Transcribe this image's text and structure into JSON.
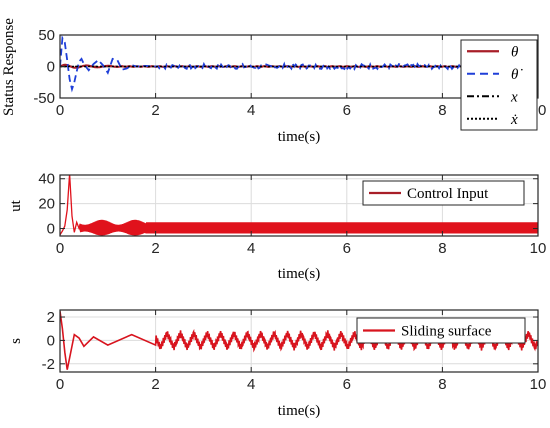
{
  "chart_data": [
    {
      "type": "line",
      "ylabel": "Status Response",
      "xlabel": "time(s)",
      "xlim": [
        0,
        10
      ],
      "ylim": [
        -50,
        50
      ],
      "xticks": [
        "0",
        "2",
        "4",
        "6",
        "8",
        "10"
      ],
      "yticks": [
        "50",
        "0",
        "-50"
      ],
      "grid": true,
      "legend_position": "top-right",
      "series": [
        {
          "name": "θ",
          "color": "#a81e28",
          "style": "solid"
        },
        {
          "name": "θ̇",
          "color": "#1f3fd8",
          "style": "dashed"
        },
        {
          "name": "x",
          "color": "#000000",
          "style": "dashdot"
        },
        {
          "name": "ẋ",
          "color": "#000000",
          "style": "dotted"
        }
      ],
      "theta_dot_samples": {
        "x": [
          0,
          0.05,
          0.1,
          0.15,
          0.2,
          0.25,
          0.3,
          0.35,
          0.4,
          0.45,
          0.5,
          0.6,
          0.7,
          0.8,
          0.9,
          1.0,
          1.1,
          1.2,
          1.3,
          1.4,
          1.5,
          1.6,
          1.8,
          2.0
        ],
        "y": [
          0,
          45,
          38,
          10,
          -20,
          -36,
          -25,
          -8,
          8,
          12,
          4,
          -6,
          4,
          10,
          2,
          -10,
          12,
          10,
          -5,
          -3,
          2,
          0,
          1,
          0
        ],
        "noise_amplitude_after_2s": 4
      }
    },
    {
      "type": "line",
      "ylabel": "ut",
      "xlabel": "time(s)",
      "xlim": [
        0,
        10
      ],
      "ylim": [
        -6,
        43
      ],
      "xticks": [
        "0",
        "2",
        "4",
        "6",
        "8",
        "10"
      ],
      "yticks": [
        "40",
        "20",
        "0"
      ],
      "grid": true,
      "legend_position": "top-right",
      "series": [
        {
          "name": "Control Input",
          "color": "#a81e28",
          "style": "solid"
        }
      ],
      "samples": {
        "x": [
          0,
          0.05,
          0.1,
          0.15,
          0.2,
          0.25,
          0.3,
          0.35,
          0.4
        ],
        "y": [
          -5,
          -2,
          2,
          15,
          44,
          10,
          -3,
          5,
          0
        ],
        "band_after_0_5s": [
          -4,
          5
        ]
      }
    },
    {
      "type": "line",
      "ylabel": "s",
      "xlabel": "time(s)",
      "xlim": [
        0,
        10
      ],
      "ylim": [
        -2.7,
        2.6
      ],
      "xticks": [
        "0",
        "2",
        "4",
        "6",
        "8",
        "10"
      ],
      "yticks": [
        "2",
        "0",
        "-2"
      ],
      "grid": true,
      "legend_position": "top-right",
      "series": [
        {
          "name": "Sliding surface",
          "color": "#d8141e",
          "style": "solid"
        }
      ],
      "samples": {
        "x": [
          0,
          0.05,
          0.1,
          0.15,
          0.2,
          0.3,
          0.4,
          0.5,
          0.7,
          1.0,
          1.5,
          2.0
        ],
        "y": [
          2.5,
          1.0,
          -1.0,
          -2.5,
          -1.5,
          0.5,
          0.2,
          -0.5,
          0.3,
          -0.4,
          0.5,
          -0.4
        ],
        "oscillation_amplitude_after_2s": 0.6,
        "oscillation_period_s": 0.28
      }
    }
  ]
}
